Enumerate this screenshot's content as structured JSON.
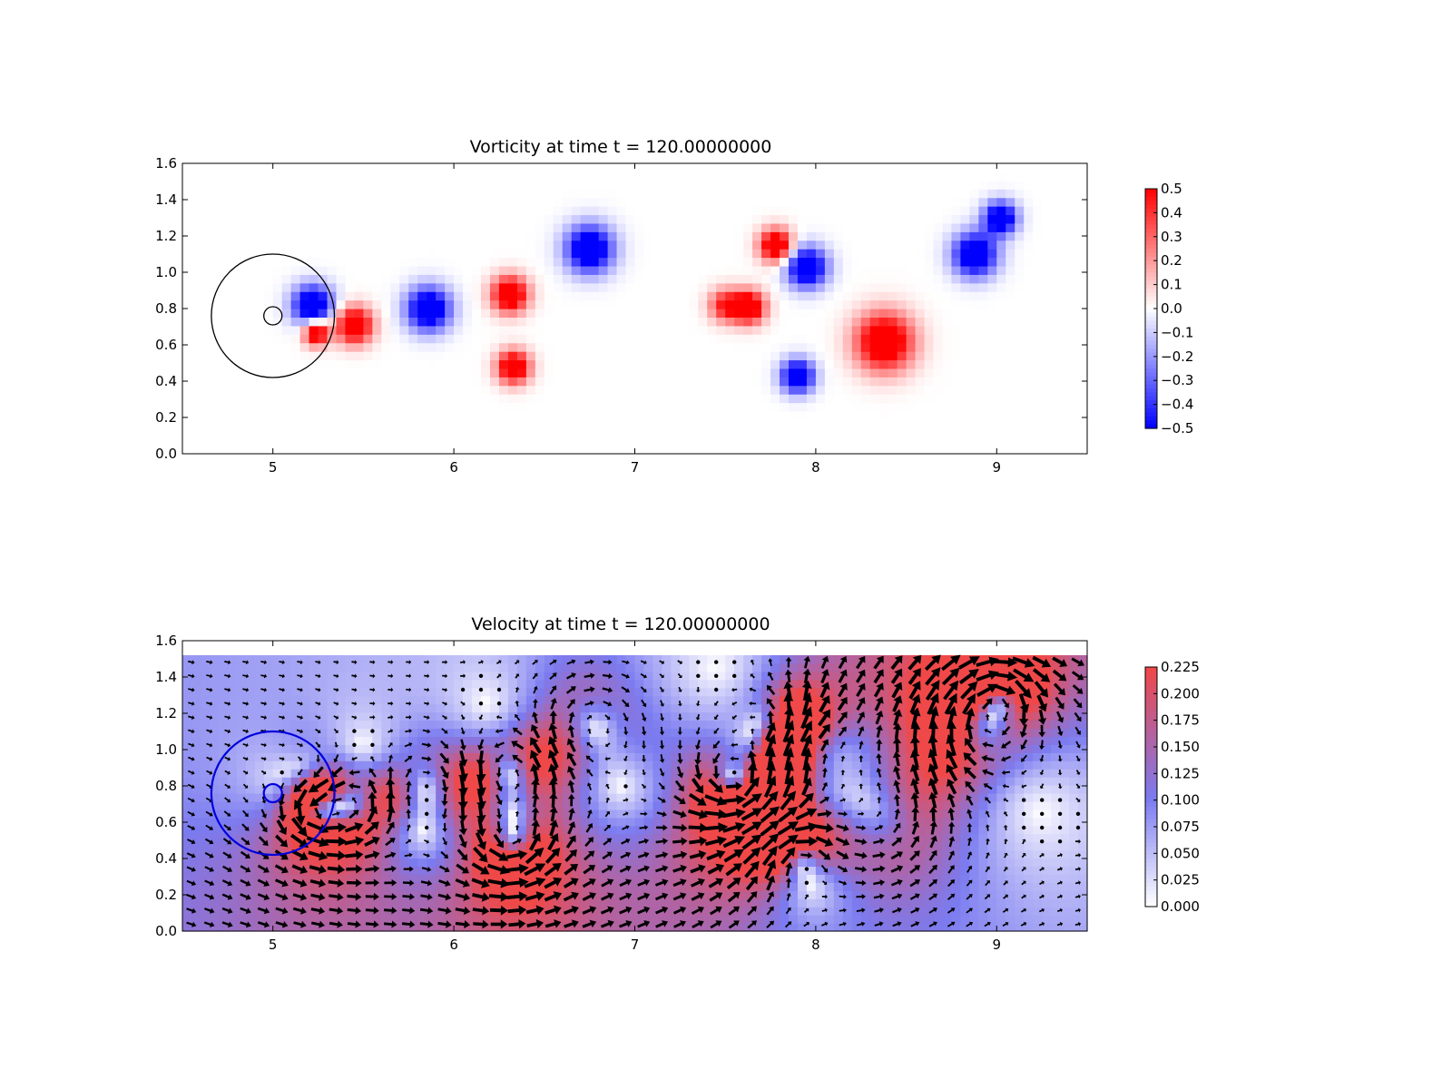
{
  "chart_data": [
    {
      "type": "heatmap",
      "title": "Vorticity at time t =   120.00000000",
      "xlim": [
        4.5,
        9.5
      ],
      "ylim": [
        0.0,
        1.6
      ],
      "xticks": [
        5,
        6,
        7,
        8,
        9
      ],
      "xtick_labels": [
        "5",
        "6",
        "7",
        "8",
        "9"
      ],
      "yticks": [
        0.0,
        0.2,
        0.4,
        0.6,
        0.8,
        1.0,
        1.2,
        1.4,
        1.6
      ],
      "ytick_labels": [
        "0.0",
        "0.2",
        "0.4",
        "0.6",
        "0.8",
        "1.0",
        "1.2",
        "1.4",
        "1.6"
      ],
      "colormap": "bwr",
      "color_low": "#0000ff",
      "color_mid": "#ffffff",
      "color_high": "#ff0000",
      "colorbar": {
        "range": [
          -0.5,
          0.5
        ],
        "ticks": [
          0.5,
          0.4,
          0.3,
          0.2,
          0.1,
          0.0,
          -0.1,
          -0.2,
          -0.3,
          -0.4,
          -0.5
        ],
        "tick_labels": [
          "0.5",
          "0.4",
          "0.3",
          "0.2",
          "0.1",
          "0.0",
          "−0.1",
          "−0.2",
          "−0.3",
          "−0.4",
          "−0.5"
        ]
      },
      "vortices": [
        {
          "x": 5.22,
          "y": 0.82,
          "r": 0.11,
          "w": -0.7
        },
        {
          "x": 5.24,
          "y": 0.67,
          "r": 0.07,
          "w": 0.7
        },
        {
          "x": 5.45,
          "y": 0.71,
          "r": 0.1,
          "w": 0.7
        },
        {
          "x": 5.86,
          "y": 0.8,
          "r": 0.12,
          "w": -0.7
        },
        {
          "x": 6.31,
          "y": 0.88,
          "r": 0.1,
          "w": 0.7
        },
        {
          "x": 6.33,
          "y": 0.48,
          "r": 0.09,
          "w": 0.7
        },
        {
          "x": 6.75,
          "y": 1.13,
          "r": 0.13,
          "w": -0.7
        },
        {
          "x": 7.5,
          "y": 0.82,
          "r": 0.09,
          "w": 0.45
        },
        {
          "x": 7.63,
          "y": 0.81,
          "r": 0.09,
          "w": 0.7
        },
        {
          "x": 7.78,
          "y": 1.15,
          "r": 0.09,
          "w": 0.7
        },
        {
          "x": 7.95,
          "y": 1.03,
          "r": 0.11,
          "w": -0.7
        },
        {
          "x": 7.9,
          "y": 0.43,
          "r": 0.09,
          "w": -0.7
        },
        {
          "x": 8.38,
          "y": 0.62,
          "r": 0.16,
          "w": 0.7
        },
        {
          "x": 8.88,
          "y": 1.1,
          "r": 0.12,
          "w": -0.7
        },
        {
          "x": 9.02,
          "y": 1.3,
          "r": 0.09,
          "w": -0.7
        }
      ],
      "circles": [
        {
          "cx": 5.0,
          "cy": 0.76,
          "r": 0.34,
          "color": "#000000"
        },
        {
          "cx": 5.0,
          "cy": 0.76,
          "r": 0.05,
          "color": "#000000"
        }
      ]
    },
    {
      "type": "heatmap",
      "title": "Velocity at time t =   120.00000000",
      "xlim": [
        4.5,
        9.5
      ],
      "ylim": [
        0.0,
        1.6
      ],
      "field_top": 1.52,
      "xticks": [
        5,
        6,
        7,
        8,
        9
      ],
      "xtick_labels": [
        "5",
        "6",
        "7",
        "8",
        "9"
      ],
      "yticks": [
        0.0,
        0.2,
        0.4,
        0.6,
        0.8,
        1.0,
        1.2,
        1.4,
        1.6
      ],
      "ytick_labels": [
        "0.0",
        "0.2",
        "0.4",
        "0.6",
        "0.8",
        "1.0",
        "1.2",
        "1.4",
        "1.6"
      ],
      "colormap": "bwr-half",
      "color_low": "#ffffff",
      "color_mid": "#7b7bf0",
      "color_high": "#f04848",
      "overlay": "quiver",
      "colorbar": {
        "range": [
          0.0,
          0.225
        ],
        "ticks": [
          0.225,
          0.2,
          0.175,
          0.15,
          0.125,
          0.1,
          0.075,
          0.05,
          0.025,
          0.0
        ],
        "tick_labels": [
          "0.225",
          "0.200",
          "0.175",
          "0.150",
          "0.125",
          "0.100",
          "0.075",
          "0.050",
          "0.025",
          "0.000"
        ]
      },
      "vortices": [
        {
          "x": 5.22,
          "y": 0.82,
          "r": 0.11,
          "w": -0.7
        },
        {
          "x": 5.24,
          "y": 0.67,
          "r": 0.07,
          "w": 0.7
        },
        {
          "x": 5.45,
          "y": 0.71,
          "r": 0.1,
          "w": 0.7
        },
        {
          "x": 5.86,
          "y": 0.8,
          "r": 0.12,
          "w": -0.7
        },
        {
          "x": 6.31,
          "y": 0.88,
          "r": 0.1,
          "w": 0.7
        },
        {
          "x": 6.33,
          "y": 0.48,
          "r": 0.09,
          "w": 0.7
        },
        {
          "x": 6.75,
          "y": 1.13,
          "r": 0.13,
          "w": -0.7
        },
        {
          "x": 7.5,
          "y": 0.82,
          "r": 0.09,
          "w": 0.45
        },
        {
          "x": 7.63,
          "y": 0.81,
          "r": 0.09,
          "w": 0.7
        },
        {
          "x": 7.78,
          "y": 1.15,
          "r": 0.09,
          "w": 0.7
        },
        {
          "x": 7.95,
          "y": 1.03,
          "r": 0.11,
          "w": -0.7
        },
        {
          "x": 7.9,
          "y": 0.43,
          "r": 0.09,
          "w": -0.7
        },
        {
          "x": 8.38,
          "y": 0.62,
          "r": 0.16,
          "w": 0.7
        },
        {
          "x": 8.88,
          "y": 1.1,
          "r": 0.12,
          "w": -0.7
        },
        {
          "x": 9.02,
          "y": 1.3,
          "r": 0.09,
          "w": -0.7
        }
      ],
      "circles": [
        {
          "cx": 5.0,
          "cy": 0.76,
          "r": 0.34,
          "color": "#0000dd"
        },
        {
          "cx": 5.0,
          "cy": 0.76,
          "r": 0.05,
          "color": "#0000dd"
        }
      ]
    }
  ]
}
